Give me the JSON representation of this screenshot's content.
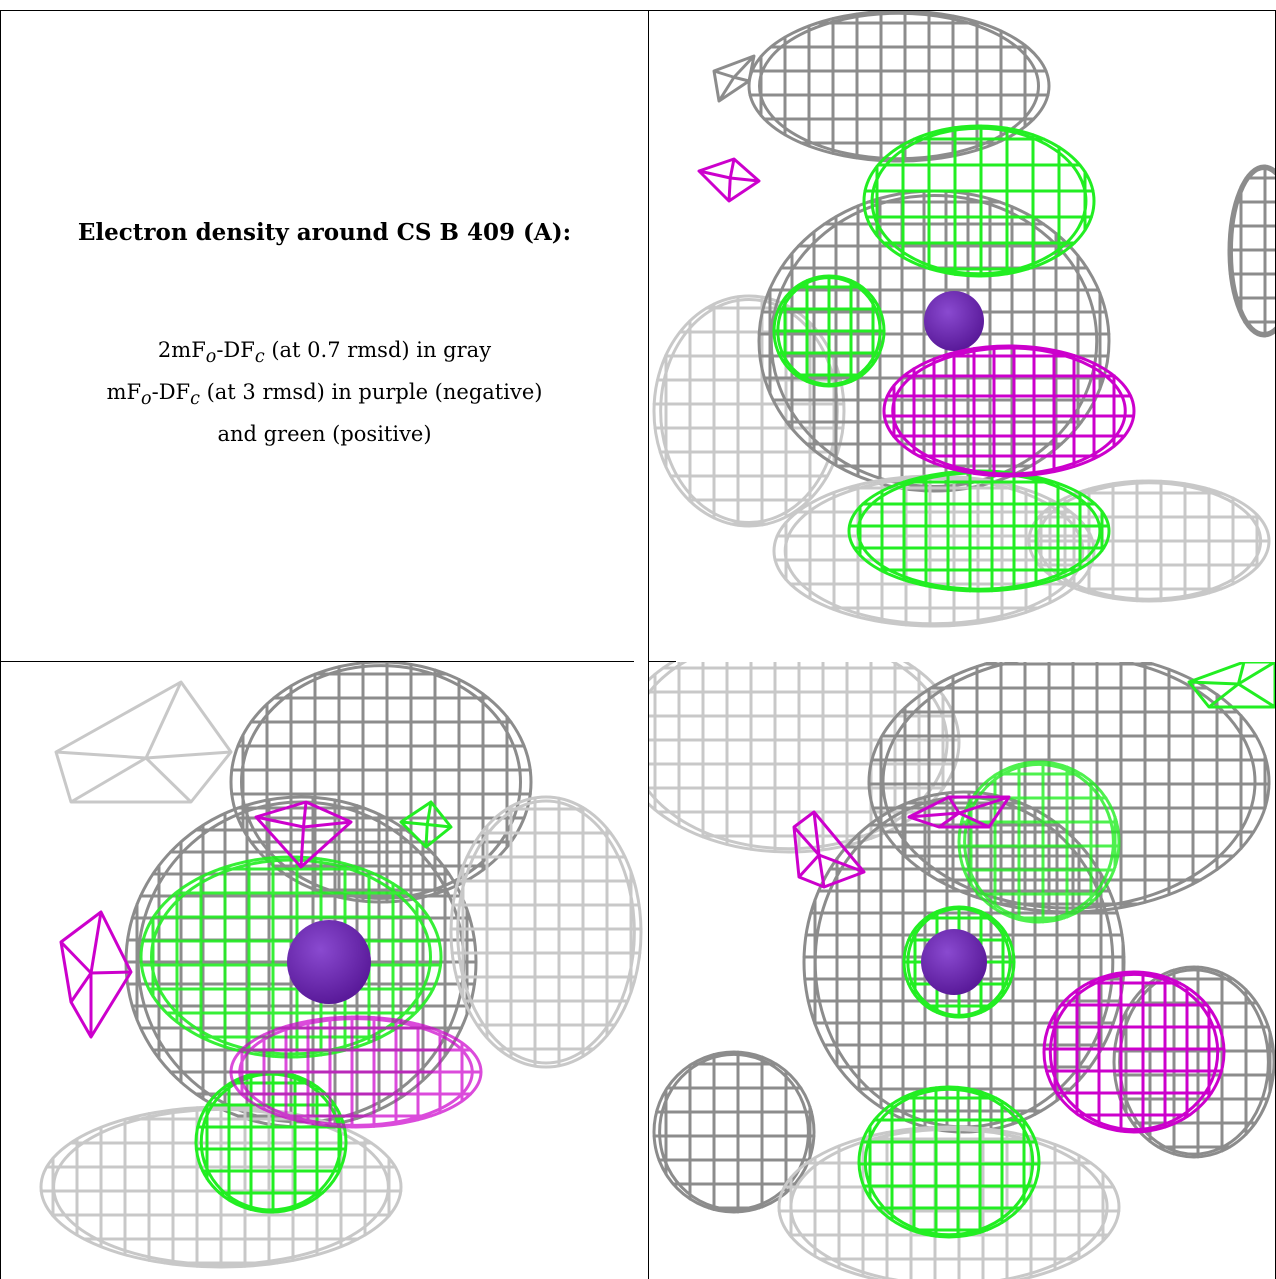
{
  "caption": {
    "title": "Electron density around CS B 409 (A):",
    "line1": "2mF",
    "line1_sub_o": "o",
    "line1_mid": "-DF",
    "line1_sub_c": "c",
    "line1_end": " (at 0.7 rmsd) in gray",
    "line2": "mF",
    "line2_sub_o": "o",
    "line2_mid": "-DF",
    "line2_sub_c": "c",
    "line2_end": " (at 3 rmsd) in purple (negative)",
    "line3": "and green (positive)"
  },
  "colors": {
    "gray_mesh": "#8c8c8c",
    "light_gray_mesh": "#c8c8c8",
    "negative_mesh": "#cc00cc",
    "positive_mesh": "#22ee22",
    "atom": "#5a1a9a"
  }
}
